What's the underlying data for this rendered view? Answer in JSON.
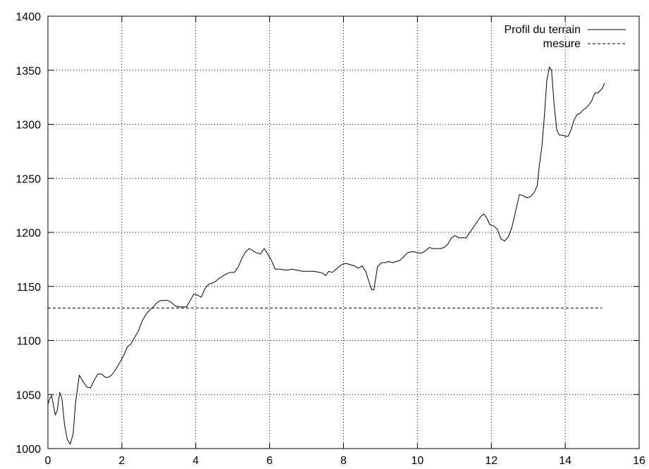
{
  "chart_data": {
    "type": "line",
    "title": "",
    "xlabel": "",
    "ylabel": "",
    "xlim": [
      0,
      16
    ],
    "ylim": [
      1000,
      1400
    ],
    "xticks": [
      0,
      2,
      4,
      6,
      8,
      10,
      12,
      14,
      16
    ],
    "yticks": [
      1000,
      1050,
      1100,
      1150,
      1200,
      1250,
      1300,
      1350,
      1400
    ],
    "grid": true,
    "legend_position": "top-right",
    "series": [
      {
        "name": "Profil du terrain",
        "style": "solid",
        "color": "#000000",
        "points": [
          [
            0.0,
            1041
          ],
          [
            0.05,
            1046
          ],
          [
            0.1,
            1049
          ],
          [
            0.15,
            1040
          ],
          [
            0.2,
            1031
          ],
          [
            0.25,
            1035
          ],
          [
            0.32,
            1052
          ],
          [
            0.38,
            1046
          ],
          [
            0.45,
            1022
          ],
          [
            0.52,
            1009
          ],
          [
            0.6,
            1004
          ],
          [
            0.68,
            1013
          ],
          [
            0.75,
            1043
          ],
          [
            0.85,
            1068
          ],
          [
            0.95,
            1062
          ],
          [
            1.05,
            1057
          ],
          [
            1.15,
            1056
          ],
          [
            1.25,
            1063
          ],
          [
            1.35,
            1069
          ],
          [
            1.45,
            1069
          ],
          [
            1.55,
            1066
          ],
          [
            1.65,
            1066
          ],
          [
            1.75,
            1069
          ],
          [
            1.85,
            1074
          ],
          [
            1.95,
            1080
          ],
          [
            2.05,
            1086
          ],
          [
            2.15,
            1094
          ],
          [
            2.25,
            1097
          ],
          [
            2.35,
            1103
          ],
          [
            2.45,
            1109
          ],
          [
            2.55,
            1118
          ],
          [
            2.65,
            1124
          ],
          [
            2.75,
            1128
          ],
          [
            2.85,
            1131
          ],
          [
            2.95,
            1135
          ],
          [
            3.05,
            1137
          ],
          [
            3.15,
            1137
          ],
          [
            3.25,
            1137
          ],
          [
            3.35,
            1135
          ],
          [
            3.45,
            1132
          ],
          [
            3.55,
            1131
          ],
          [
            3.65,
            1131
          ],
          [
            3.75,
            1131
          ],
          [
            3.85,
            1137
          ],
          [
            3.95,
            1143
          ],
          [
            4.05,
            1142
          ],
          [
            4.15,
            1140
          ],
          [
            4.25,
            1148
          ],
          [
            4.35,
            1152
          ],
          [
            4.45,
            1153
          ],
          [
            4.55,
            1155
          ],
          [
            4.65,
            1158
          ],
          [
            4.75,
            1160
          ],
          [
            4.85,
            1162
          ],
          [
            4.95,
            1163
          ],
          [
            5.05,
            1163
          ],
          [
            5.15,
            1168
          ],
          [
            5.25,
            1176
          ],
          [
            5.35,
            1182
          ],
          [
            5.45,
            1185
          ],
          [
            5.55,
            1183
          ],
          [
            5.65,
            1181
          ],
          [
            5.75,
            1180
          ],
          [
            5.85,
            1185
          ],
          [
            5.95,
            1180
          ],
          [
            6.05,
            1174
          ],
          [
            6.15,
            1166
          ],
          [
            6.3,
            1166
          ],
          [
            6.45,
            1165
          ],
          [
            6.6,
            1166
          ],
          [
            6.75,
            1165
          ],
          [
            6.9,
            1164
          ],
          [
            7.05,
            1164
          ],
          [
            7.2,
            1164
          ],
          [
            7.35,
            1163
          ],
          [
            7.45,
            1162
          ],
          [
            7.52,
            1160
          ],
          [
            7.6,
            1164
          ],
          [
            7.7,
            1163
          ],
          [
            7.8,
            1166
          ],
          [
            7.9,
            1169
          ],
          [
            8.0,
            1171
          ],
          [
            8.1,
            1171
          ],
          [
            8.2,
            1170
          ],
          [
            8.3,
            1169
          ],
          [
            8.4,
            1167
          ],
          [
            8.5,
            1169
          ],
          [
            8.6,
            1164
          ],
          [
            8.7,
            1153
          ],
          [
            8.76,
            1147
          ],
          [
            8.82,
            1147
          ],
          [
            8.92,
            1168
          ],
          [
            9.02,
            1172
          ],
          [
            9.12,
            1172
          ],
          [
            9.22,
            1173
          ],
          [
            9.32,
            1172
          ],
          [
            9.42,
            1173
          ],
          [
            9.52,
            1174
          ],
          [
            9.62,
            1177
          ],
          [
            9.72,
            1181
          ],
          [
            9.82,
            1182
          ],
          [
            9.92,
            1182
          ],
          [
            10.02,
            1181
          ],
          [
            10.12,
            1181
          ],
          [
            10.22,
            1183
          ],
          [
            10.32,
            1186
          ],
          [
            10.42,
            1185
          ],
          [
            10.52,
            1185
          ],
          [
            10.62,
            1185
          ],
          [
            10.72,
            1186
          ],
          [
            10.82,
            1189
          ],
          [
            10.92,
            1195
          ],
          [
            11.02,
            1197
          ],
          [
            11.12,
            1195
          ],
          [
            11.22,
            1195
          ],
          [
            11.32,
            1195
          ],
          [
            11.42,
            1200
          ],
          [
            11.52,
            1205
          ],
          [
            11.62,
            1210
          ],
          [
            11.72,
            1215
          ],
          [
            11.8,
            1217
          ],
          [
            11.88,
            1213
          ],
          [
            11.96,
            1207
          ],
          [
            12.06,
            1206
          ],
          [
            12.16,
            1203
          ],
          [
            12.26,
            1194
          ],
          [
            12.36,
            1192
          ],
          [
            12.46,
            1196
          ],
          [
            12.56,
            1205
          ],
          [
            12.66,
            1220
          ],
          [
            12.76,
            1235
          ],
          [
            12.86,
            1234
          ],
          [
            12.96,
            1232
          ],
          [
            13.06,
            1233
          ],
          [
            13.16,
            1237
          ],
          [
            13.24,
            1243
          ],
          [
            13.3,
            1262
          ],
          [
            13.37,
            1280
          ],
          [
            13.44,
            1310
          ],
          [
            13.5,
            1340
          ],
          [
            13.57,
            1353
          ],
          [
            13.63,
            1350
          ],
          [
            13.7,
            1318
          ],
          [
            13.77,
            1295
          ],
          [
            13.84,
            1290
          ],
          [
            13.92,
            1290
          ],
          [
            14.0,
            1289
          ],
          [
            14.08,
            1289
          ],
          [
            14.16,
            1295
          ],
          [
            14.24,
            1304
          ],
          [
            14.32,
            1309
          ],
          [
            14.4,
            1310
          ],
          [
            14.48,
            1313
          ],
          [
            14.56,
            1315
          ],
          [
            14.64,
            1318
          ],
          [
            14.72,
            1322
          ],
          [
            14.8,
            1329
          ],
          [
            14.88,
            1329
          ],
          [
            14.94,
            1331
          ],
          [
            15.0,
            1333
          ],
          [
            15.06,
            1338
          ]
        ]
      },
      {
        "name": "mesure",
        "style": "dashed",
        "color": "#000000",
        "points": [
          [
            0.0,
            1130
          ],
          [
            15.0,
            1130
          ]
        ]
      }
    ]
  }
}
